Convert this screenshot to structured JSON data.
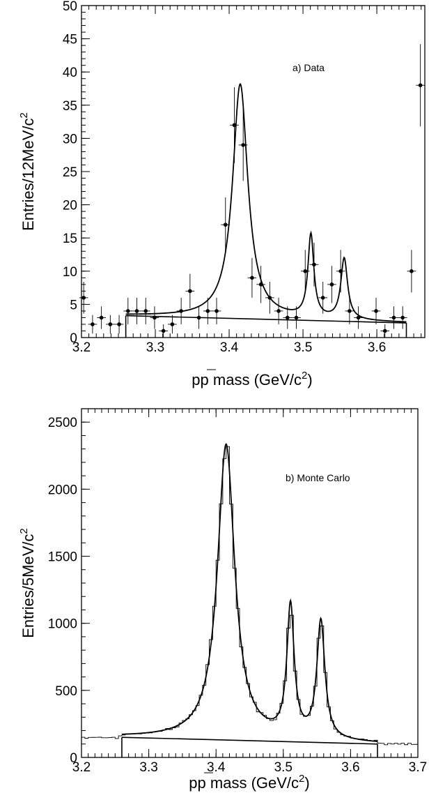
{
  "chart_data": [
    {
      "type": "scatter",
      "annotation": "a) Data",
      "ylabel": "Entries/12MeV/c",
      "ylabel_sup": "2",
      "xlabel_prefix": "pp",
      "xlabel_suffix": " mass (GeV/c",
      "xlabel_sup": "2",
      "xlabel_close": ")",
      "xlim": [
        3.2,
        3.665
      ],
      "ylim": [
        0,
        50
      ],
      "xticks": [
        "3.2",
        "3.3",
        "3.4",
        "3.5",
        "3.6"
      ],
      "yticks": [
        "0",
        "5",
        "10",
        "15",
        "20",
        "25",
        "30",
        "35",
        "40",
        "45",
        "50"
      ],
      "points": [
        {
          "x": 3.203,
          "y": 6,
          "yerr": 2.4
        },
        {
          "x": 3.215,
          "y": 2,
          "yerr": 1.4
        },
        {
          "x": 3.227,
          "y": 3,
          "yerr": 1.7
        },
        {
          "x": 3.239,
          "y": 2,
          "yerr": 1.4
        },
        {
          "x": 3.251,
          "y": 2,
          "yerr": 1.4
        },
        {
          "x": 3.263,
          "y": 4,
          "yerr": 2.0
        },
        {
          "x": 3.275,
          "y": 4,
          "yerr": 2.0
        },
        {
          "x": 3.287,
          "y": 4,
          "yerr": 2.0
        },
        {
          "x": 3.299,
          "y": 3,
          "yerr": 1.7
        },
        {
          "x": 3.311,
          "y": 1,
          "yerr": 1.0
        },
        {
          "x": 3.323,
          "y": 2,
          "yerr": 1.4
        },
        {
          "x": 3.335,
          "y": 4,
          "yerr": 2.0
        },
        {
          "x": 3.347,
          "y": 7,
          "yerr": 2.6
        },
        {
          "x": 3.359,
          "y": 3,
          "yerr": 1.7
        },
        {
          "x": 3.371,
          "y": 4,
          "yerr": 2.0
        },
        {
          "x": 3.383,
          "y": 4,
          "yerr": 2.0
        },
        {
          "x": 3.395,
          "y": 17,
          "yerr": 4.1
        },
        {
          "x": 3.407,
          "y": 32,
          "yerr": 5.7
        },
        {
          "x": 3.419,
          "y": 29,
          "yerr": 5.4
        },
        {
          "x": 3.431,
          "y": 9,
          "yerr": 3.0
        },
        {
          "x": 3.443,
          "y": 8,
          "yerr": 2.8
        },
        {
          "x": 3.455,
          "y": 6,
          "yerr": 2.4
        },
        {
          "x": 3.467,
          "y": 4,
          "yerr": 2.0
        },
        {
          "x": 3.479,
          "y": 3,
          "yerr": 1.7
        },
        {
          "x": 3.491,
          "y": 3,
          "yerr": 1.7
        },
        {
          "x": 3.503,
          "y": 10,
          "yerr": 3.2
        },
        {
          "x": 3.515,
          "y": 11,
          "yerr": 3.3
        },
        {
          "x": 3.527,
          "y": 6,
          "yerr": 2.4
        },
        {
          "x": 3.539,
          "y": 8,
          "yerr": 2.8
        },
        {
          "x": 3.551,
          "y": 10,
          "yerr": 3.2
        },
        {
          "x": 3.563,
          "y": 4,
          "yerr": 2.0
        },
        {
          "x": 3.575,
          "y": 3,
          "yerr": 1.7
        },
        {
          "x": 3.599,
          "y": 4,
          "yerr": 2.0
        },
        {
          "x": 3.611,
          "y": 1,
          "yerr": 1.0
        },
        {
          "x": 3.623,
          "y": 3,
          "yerr": 1.7
        },
        {
          "x": 3.635,
          "y": 3,
          "yerr": 1.7
        },
        {
          "x": 3.647,
          "y": 10,
          "yerr": 3.2
        },
        {
          "x": 3.659,
          "y": 38,
          "yerr": 6.2
        }
      ],
      "fit_range": [
        3.26,
        3.64
      ],
      "background": {
        "from": [
          3.26,
          3.3
        ],
        "to": [
          3.64,
          2.2
        ]
      },
      "peaks": [
        {
          "mass": 3.415,
          "height": 35.3,
          "gamma": 0.0125,
          "shape": "lorentz"
        },
        {
          "mass": 3.5107,
          "height": 12.5,
          "gamma": 0.0048,
          "shape": "lorentz"
        },
        {
          "mass": 3.5558,
          "height": 9.2,
          "gamma": 0.0055,
          "shape": "lorentz"
        }
      ]
    },
    {
      "type": "line",
      "annotation": "b) Monte Carlo",
      "ylabel": "Entries/5MeV/c",
      "ylabel_sup": "2",
      "xlabel_prefix": "pp",
      "xlabel_suffix": " mass (GeV/c",
      "xlabel_sup": "2",
      "xlabel_close": ")",
      "xlim": [
        3.2,
        3.7
      ],
      "ylim": [
        0,
        2600
      ],
      "xticks": [
        "3.2",
        "3.3",
        "3.4",
        "3.5",
        "3.6",
        "3.7"
      ],
      "yticks": [
        "0",
        "500",
        "1000",
        "1500",
        "2000",
        "2500"
      ],
      "bin_width": 0.005,
      "fit_range": [
        3.26,
        3.64
      ],
      "background": {
        "from": [
          3.26,
          150
        ],
        "to": [
          3.64,
          100
        ]
      },
      "outside_level": {
        "left": 150,
        "right": 100
      },
      "peaks": [
        {
          "mass": 3.415,
          "height": 2200,
          "gamma": 0.0155,
          "shape": "lorentz"
        },
        {
          "mass": 3.5107,
          "height": 975,
          "gamma": 0.0065,
          "shape": "lorentz"
        },
        {
          "mass": 3.5558,
          "height": 880,
          "gamma": 0.0072,
          "shape": "lorentz"
        }
      ]
    }
  ]
}
